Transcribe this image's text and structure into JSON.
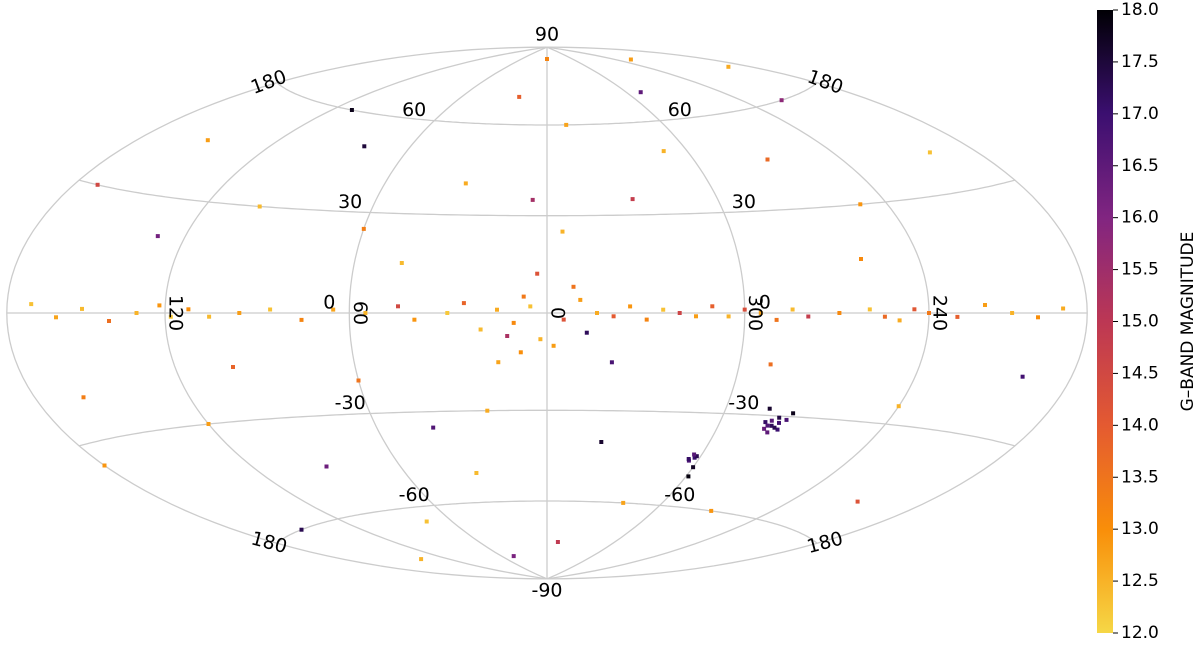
{
  "chart_data": {
    "type": "scatter",
    "projection": "hammer",
    "grid": true,
    "grid_color": "#cccccc",
    "xticks": [
      180,
      120,
      60,
      0,
      300,
      240
    ],
    "yticks": [
      -90,
      -60,
      -30,
      0,
      30,
      60,
      90
    ],
    "x": [
      5,
      10,
      15,
      355,
      350,
      20,
      25,
      30,
      40,
      45,
      55,
      65,
      75,
      85,
      95,
      105,
      112,
      118,
      122,
      130,
      140,
      150,
      160,
      170,
      190,
      200,
      210,
      220,
      230,
      240,
      245,
      250,
      255,
      260,
      270,
      280,
      285,
      290,
      295,
      300,
      305,
      310,
      315,
      320,
      325,
      330,
      335,
      340,
      345,
      2,
      358,
      8,
      352,
      3,
      12,
      348,
      15,
      340,
      7,
      30,
      60,
      80,
      100,
      130,
      150,
      170,
      200,
      220,
      250,
      270,
      290,
      310,
      330,
      350,
      20,
      45,
      110,
      190,
      260,
      120,
      90,
      60,
      30,
      150,
      180,
      210,
      240,
      200,
      160,
      20,
      340,
      320,
      350,
      140,
      100,
      75,
      45,
      225,
      0,
      5,
      355,
      40,
      270,
      290,
      279,
      281,
      282,
      278,
      283,
      280,
      277,
      284,
      281,
      279.5,
      282.5,
      276,
      285,
      302,
      303.5,
      301.5,
      303,
      304,
      300,
      299
    ],
    "y": [
      2,
      -3,
      1,
      -2,
      4,
      -5,
      3,
      0,
      -2,
      2,
      0,
      1,
      -2,
      1,
      0,
      -1,
      1,
      -1,
      2,
      0,
      -2,
      1,
      -1,
      2,
      1,
      -1,
      0,
      2,
      -1,
      0,
      1,
      -2,
      -1,
      1,
      0,
      -1,
      1,
      -2,
      0,
      1,
      -1,
      2,
      -1,
      0,
      1,
      -2,
      2,
      -1,
      0,
      -8,
      -10,
      -12,
      8,
      12,
      -7,
      -6,
      -15,
      -15,
      5,
      40,
      25,
      50,
      30,
      20,
      45,
      30,
      40,
      60,
      30,
      45,
      70,
      50,
      35,
      60,
      70,
      15,
      60,
      70,
      15,
      -30,
      -45,
      -20,
      -50,
      -60,
      -35,
      -50,
      -25,
      -15,
      -20,
      -30,
      -40,
      -60,
      -75,
      -75,
      -15,
      -65,
      -80,
      80,
      85,
      35,
      25,
      -35,
      -60,
      -15,
      -32,
      -33,
      -31.5,
      -34,
      -34,
      -30.5,
      -31,
      -32,
      -35,
      -33.5,
      -33,
      -29,
      -28,
      -44,
      -45,
      -43.5,
      -43,
      -44.5,
      -47,
      -50
    ],
    "values": [
      12.3,
      13.1,
      12.6,
      14.2,
      12.8,
      12.4,
      13.8,
      12.2,
      12.9,
      14.5,
      12.5,
      12.7,
      13.2,
      12.3,
      12.8,
      12.4,
      13.0,
      12.2,
      12.9,
      12.5,
      13.6,
      12.4,
      12.7,
      12.3,
      12.6,
      13.0,
      12.5,
      12.8,
      13.9,
      13.4,
      14.1,
      12.6,
      13.7,
      12.3,
      13.1,
      14.8,
      12.4,
      13.5,
      12.7,
      14.3,
      12.5,
      13.9,
      12.8,
      14.6,
      12.3,
      13.2,
      12.9,
      14.0,
      12.6,
      12.5,
      12.8,
      13.0,
      13.5,
      14.2,
      15.3,
      17.2,
      12.7,
      16.8,
      13.4,
      12.6,
      13.3,
      17.5,
      12.4,
      16.2,
      12.8,
      14.5,
      12.3,
      15.8,
      12.9,
      13.7,
      16.5,
      12.5,
      14.8,
      12.7,
      13.9,
      12.4,
      17.8,
      12.6,
      13.1,
      12.8,
      16.3,
      13.5,
      12.4,
      17.3,
      12.9,
      14.2,
      12.5,
      16.9,
      13.3,
      12.6,
      17.6,
      12.7,
      14.9,
      12.5,
      13.8,
      12.3,
      16.1,
      12.8,
      13.2,
      15.4,
      12.5,
      16.7,
      12.9,
      13.6,
      16.9,
      17.2,
      16.6,
      17.0,
      16.4,
      17.4,
      16.8,
      17.1,
      16.5,
      17.3,
      16.7,
      17.8,
      17.6,
      17.0,
      16.8,
      17.3,
      16.6,
      17.1,
      17.7,
      17.9
    ],
    "clim": [
      12,
      18
    ],
    "colormap": [
      "#f6d746",
      "#f98e09",
      "#e45a31",
      "#bc3754",
      "#812581",
      "#3b0f70",
      "#000004"
    ],
    "colorbar_label": "G–BAND MAGNITUDE",
    "cticks": [
      {
        "value": 12,
        "label": "12.0"
      },
      {
        "value": 12.5,
        "label": "12.5"
      },
      {
        "value": 13,
        "label": "13.0"
      },
      {
        "value": 13.5,
        "label": "13.5"
      },
      {
        "value": 14,
        "label": "14.0"
      },
      {
        "value": 14.5,
        "label": "14.5"
      },
      {
        "value": 15,
        "label": "15.0"
      },
      {
        "value": 15.5,
        "label": "15.5"
      },
      {
        "value": 16,
        "label": "16.0"
      },
      {
        "value": 16.5,
        "label": "16.5"
      },
      {
        "value": 17,
        "label": "17.0"
      },
      {
        "value": 17.5,
        "label": "17.5"
      },
      {
        "value": 18,
        "label": "18.0"
      }
    ]
  }
}
